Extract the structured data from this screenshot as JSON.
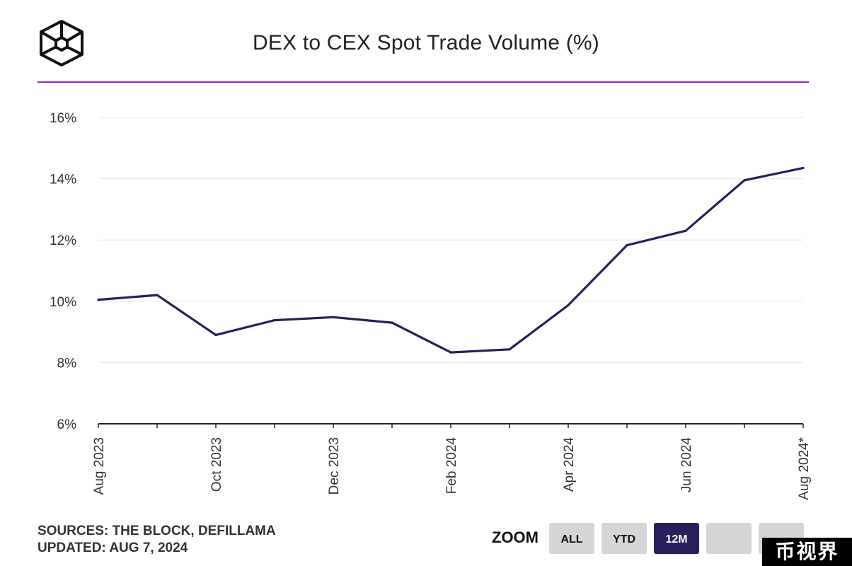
{
  "header": {
    "logo_icon": "the-block-cube-icon",
    "title": "DEX to CEX Spot Trade Volume (%)",
    "accent_color": "#8e2bd3"
  },
  "chart_data": {
    "type": "line",
    "title": "DEX to CEX Spot Trade Volume (%)",
    "xlabel": "",
    "ylabel": "",
    "ylim": [
      6,
      16
    ],
    "y_ticks": [
      "6%",
      "8%",
      "10%",
      "12%",
      "14%",
      "16%"
    ],
    "y_tick_values": [
      6,
      8,
      10,
      12,
      14,
      16
    ],
    "x": [
      "Aug 2023",
      "Sep 2023",
      "Oct 2023",
      "Nov 2023",
      "Dec 2023",
      "Jan 2024",
      "Feb 2024",
      "Mar 2024",
      "Apr 2024",
      "May 2024",
      "Jun 2024",
      "Jul 2024",
      "Aug 2024*"
    ],
    "x_tick_labels": [
      "Aug 2023",
      "",
      "Oct 2023",
      "",
      "Dec 2023",
      "",
      "Feb 2024",
      "",
      "Apr 2024",
      "",
      "Jun 2024",
      "",
      "Aug 2024*"
    ],
    "series": [
      {
        "values": [
          10.05,
          10.2,
          8.9,
          9.38,
          9.48,
          9.3,
          8.33,
          8.43,
          9.87,
          11.83,
          12.3,
          13.95,
          14.35
        ],
        "color": "#2a1f5c"
      }
    ],
    "grid": true,
    "legend": "none"
  },
  "footer": {
    "sources": "SOURCES: THE BLOCK, DEFILLAMA",
    "updated": "UPDATED: AUG 7, 2024"
  },
  "zoom": {
    "label": "ZOOM",
    "buttons": [
      {
        "label": "ALL",
        "active": false
      },
      {
        "label": "YTD",
        "active": false
      },
      {
        "label": "12M",
        "active": true
      },
      {
        "label": "",
        "active": false
      },
      {
        "label": "",
        "active": false
      }
    ],
    "active_color": "#2a1f5c"
  },
  "watermark": {
    "text": "币视界"
  }
}
